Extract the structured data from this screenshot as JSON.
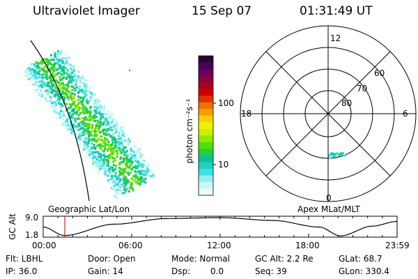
{
  "header": {
    "title": "Ultraviolet Imager",
    "date": "15 Sep 07",
    "time": "01:31:49 UT"
  },
  "colorbar": {
    "unit_label": "photon cm⁻²s⁻¹",
    "ticks": [
      "100",
      "10"
    ],
    "colors": [
      "#2a003a",
      "#4b0058",
      "#6b0060",
      "#8a0040",
      "#aa0020",
      "#cc0000",
      "#e03000",
      "#f07000",
      "#f8a000",
      "#f8d000",
      "#f0f000",
      "#c8f000",
      "#90e800",
      "#50e000",
      "#20d040",
      "#10c090",
      "#20d0c0",
      "#40e0e0",
      "#90f0f0",
      "#c8f8f8",
      "#e8fcfc"
    ]
  },
  "polar": {
    "top_label": "12",
    "bottom_label": "0",
    "left_label": "18",
    "right_label": "6",
    "lat_labels": [
      "60",
      "70",
      "80"
    ]
  },
  "map_labels": {
    "left": "Geographic Lat/Lon",
    "right": "Apex MLat/MLT"
  },
  "altitude_plot": {
    "ylabel": "GC Alt",
    "ymax": "9.0",
    "ymin": "1.8",
    "x_ticks": [
      "00:00",
      "06:00",
      "12:00",
      "18:00",
      "23:59"
    ]
  },
  "info": {
    "flt": "Flt: LBHL",
    "ip": "IP: 36.0",
    "door": "Door: Open",
    "gain": "Gain: 14",
    "mode": "Mode: Normal",
    "dsp_label": "Dsp:",
    "dsp_value": "0.0",
    "gc_alt": "GC Alt: 2.2 Re",
    "seq": "Seq: 39",
    "glat": "GLat:  68.7",
    "glon": "GLon: 330.4"
  }
}
